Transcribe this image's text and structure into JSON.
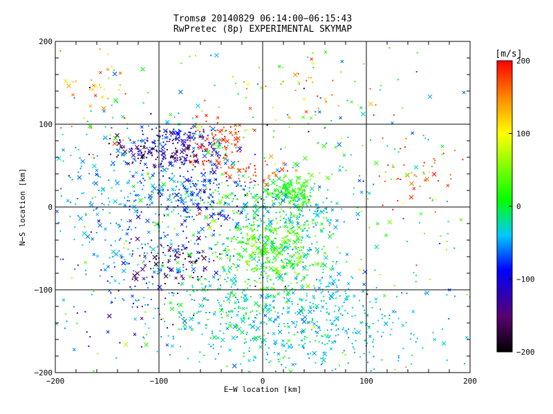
{
  "chart_data": {
    "type": "scatter",
    "title": "Tromsø 20140829 06:14:00−06:15:43",
    "subtitle": "RwPretec (8p) EXPERIMENTAL SKYMAP",
    "xlabel": "E−W location [km]",
    "ylabel": "N−S location [km]",
    "xlim": [
      -200,
      200
    ],
    "ylim": [
      -200,
      200
    ],
    "xticks": [
      -200,
      -100,
      0,
      100,
      200
    ],
    "yticks": [
      -200,
      -100,
      0,
      100,
      200
    ],
    "xtick_labels": [
      "−200",
      "−100",
      "0",
      "100",
      "200"
    ],
    "ytick_labels": [
      "−200",
      "−100",
      "0",
      "100",
      "200"
    ],
    "grid": true,
    "colorbar": {
      "label": "[m/s]",
      "min": -200,
      "max": 200,
      "ticks": [
        200,
        100,
        0,
        -100,
        -200
      ],
      "tick_labels": [
        "200",
        "100",
        "0",
        "−100",
        "−200"
      ],
      "colormap": [
        "#000000",
        "#5a006e",
        "#0000ff",
        "#00c8ff",
        "#00ff00",
        "#ffff00",
        "#ff8c00",
        "#ff0000"
      ]
    },
    "clusters": [
      {
        "cx": -95,
        "cy": 68,
        "sx": 25,
        "sy": 12,
        "n": 170,
        "vmin": -200,
        "vmax": -110
      },
      {
        "cx": -75,
        "cy": 85,
        "sx": 15,
        "sy": 8,
        "n": 60,
        "vmin": -130,
        "vmax": -70
      },
      {
        "cx": -45,
        "cy": 75,
        "sx": 15,
        "sy": 18,
        "n": 110,
        "vmin": 160,
        "vmax": 200
      },
      {
        "cx": 28,
        "cy": 20,
        "sx": 12,
        "sy": 8,
        "n": 130,
        "vmin": -20,
        "vmax": 40
      },
      {
        "cx": 8,
        "cy": -52,
        "sx": 26,
        "sy": 20,
        "n": 380,
        "vmin": -30,
        "vmax": 70
      },
      {
        "cx": -85,
        "cy": -65,
        "sx": 20,
        "sy": 15,
        "n": 90,
        "vmin": -200,
        "vmax": -120
      },
      {
        "cx": -15,
        "cy": 5,
        "sx": 40,
        "sy": 10,
        "n": 130,
        "vmin": -70,
        "vmax": 60
      },
      {
        "cx": 30,
        "cy": -10,
        "sx": 25,
        "sy": 10,
        "n": 80,
        "vmin": -60,
        "vmax": -30
      },
      {
        "cx": -70,
        "cy": 20,
        "sx": 30,
        "sy": 30,
        "n": 220,
        "vmin": -130,
        "vmax": -60
      },
      {
        "cx": 50,
        "cy": -140,
        "sx": 55,
        "sy": 35,
        "n": 380,
        "vmin": -60,
        "vmax": -20
      },
      {
        "cx": -20,
        "cy": -110,
        "sx": 50,
        "sy": 40,
        "n": 330,
        "vmin": -70,
        "vmax": 20
      },
      {
        "cx": -130,
        "cy": 0,
        "sx": 40,
        "sy": 60,
        "n": 260,
        "vmin": -70,
        "vmax": -30
      },
      {
        "cx": 0,
        "cy": 40,
        "sx": 15,
        "sy": 8,
        "n": 35,
        "vmin": 140,
        "vmax": 200
      },
      {
        "cx": 150,
        "cy": 40,
        "sx": 30,
        "sy": 25,
        "n": 45,
        "vmin": 150,
        "vmax": 200
      },
      {
        "cx": -160,
        "cy": 140,
        "sx": 25,
        "sy": 35,
        "n": 45,
        "vmin": 100,
        "vmax": 200
      },
      {
        "cx": -120,
        "cy": -100,
        "sx": 30,
        "sy": 40,
        "n": 50,
        "vmin": -160,
        "vmax": -80
      },
      {
        "cx": 0,
        "cy": 0,
        "sx": 120,
        "sy": 110,
        "n": 450,
        "vmin": -80,
        "vmax": 60
      },
      {
        "cx": 0,
        "cy": 0,
        "sx": 130,
        "sy": 120,
        "n": 130,
        "vmin": -200,
        "vmax": 200
      },
      {
        "cx": 40,
        "cy": 140,
        "sx": 40,
        "sy": 35,
        "n": 40,
        "vmin": 80,
        "vmax": 200
      }
    ]
  }
}
